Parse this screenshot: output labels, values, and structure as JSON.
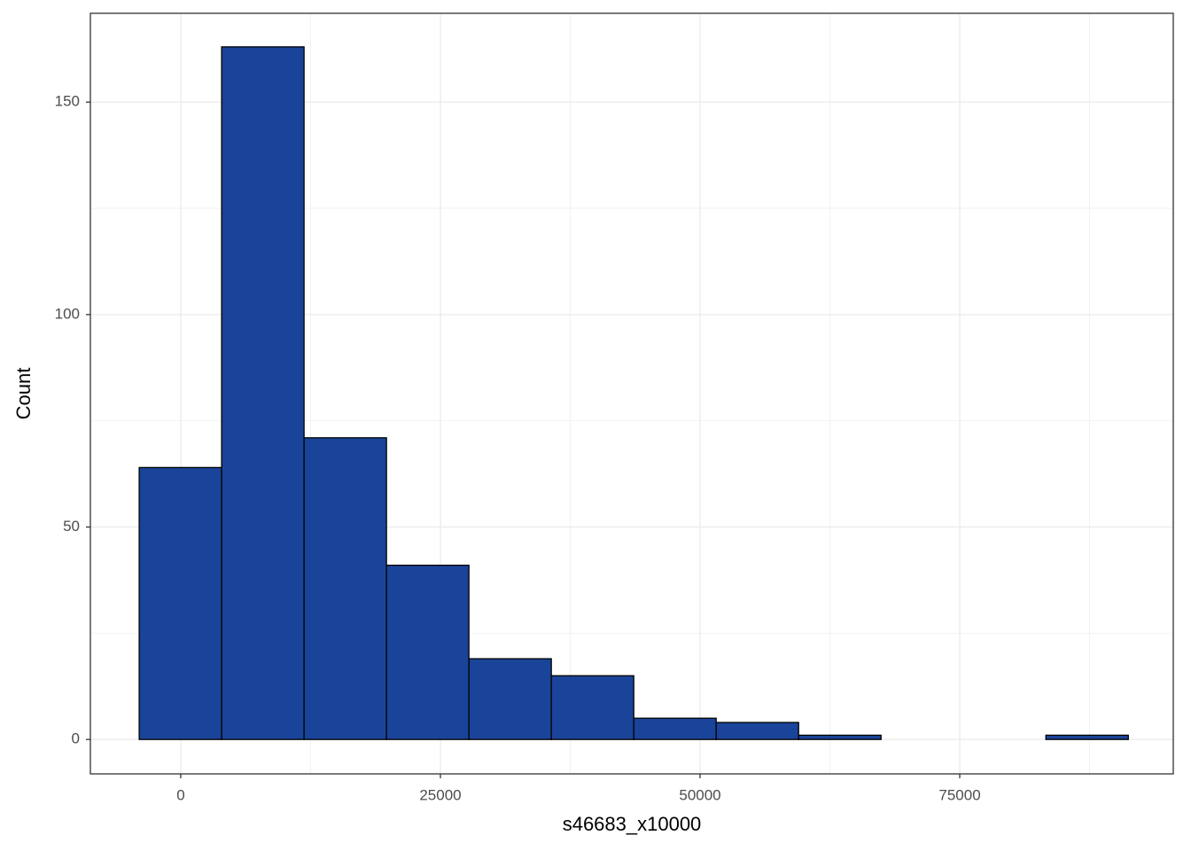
{
  "chart_data": {
    "type": "histogram",
    "x_label": "s46683_x10000",
    "y_label": "Count",
    "bins": [
      -4000,
      3936,
      11872,
      19808,
      27744,
      35680,
      43616,
      51552,
      59488,
      67424,
      75360,
      83296,
      91232
    ],
    "counts": [
      64,
      163,
      71,
      41,
      19,
      15,
      5,
      4,
      1,
      0,
      0,
      1
    ],
    "color": "#1a4499",
    "edge_color": "#000000",
    "xlim": [
      -8700,
      95560
    ],
    "ylim": [
      -8.1,
      170.9
    ],
    "xticks": [
      0,
      25000,
      50000,
      75000
    ],
    "yticks": [
      0,
      50,
      100,
      150
    ],
    "grid": true
  }
}
